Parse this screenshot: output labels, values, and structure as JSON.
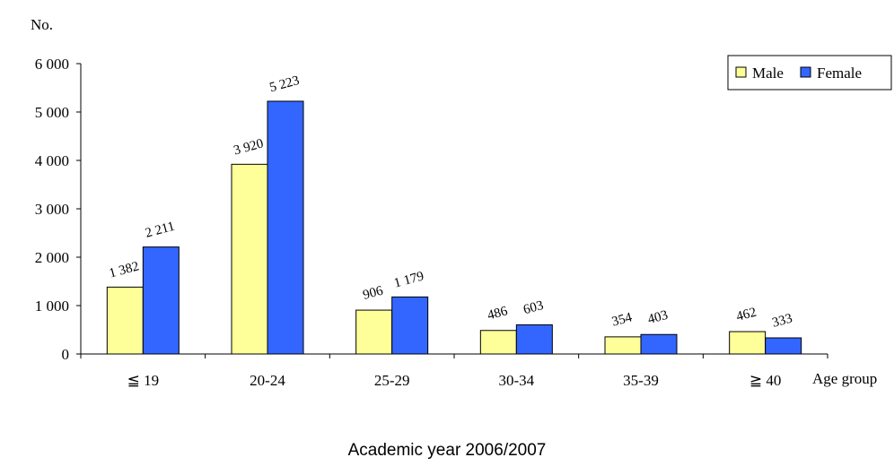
{
  "chart_data": {
    "type": "bar",
    "ylabel": "No.",
    "xlabel": "Age group",
    "caption": "Academic year 2006/2007",
    "categories": [
      "≦ 19",
      "20-24",
      "25-29",
      "30-34",
      "35-39",
      "≧ 40"
    ],
    "series": [
      {
        "name": "Male",
        "color": "#ffff99",
        "values": [
          1382,
          3920,
          906,
          486,
          354,
          462
        ],
        "labels": [
          "1 382",
          "3 920",
          "906",
          "486",
          "354",
          "462"
        ]
      },
      {
        "name": "Female",
        "color": "#3366ff",
        "values": [
          2211,
          5223,
          1179,
          603,
          403,
          333
        ],
        "labels": [
          "2 211",
          "5 223",
          "1 179",
          "603",
          "403",
          "333"
        ]
      }
    ],
    "ylim": [
      0,
      6000
    ],
    "yticks": [
      0,
      1000,
      2000,
      3000,
      4000,
      5000,
      6000
    ],
    "ytick_labels": [
      "0",
      "1 000",
      "2 000",
      "3 000",
      "4 000",
      "5 000",
      "6 000"
    ],
    "legend_position": "top-right",
    "grid": false
  }
}
